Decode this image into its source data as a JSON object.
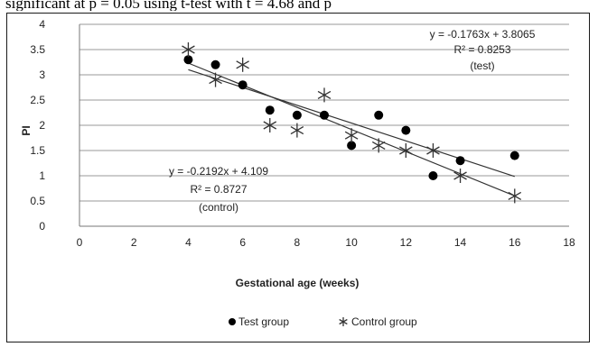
{
  "caption_fragment": "significant at p = 0.05 using t-test with t = 4.68 and p",
  "chart_data": {
    "type": "scatter",
    "title": "",
    "xlabel": "Gestational age (weeks)",
    "ylabel": "PI",
    "xlim": [
      0,
      18
    ],
    "ylim": [
      0,
      4
    ],
    "x_ticks": [
      0,
      2,
      4,
      6,
      8,
      10,
      12,
      14,
      16,
      18
    ],
    "y_ticks": [
      0,
      0.5,
      1,
      1.5,
      2,
      2.5,
      3,
      3.5,
      4
    ],
    "grid": "horizontal",
    "legend": "bottom",
    "series": [
      {
        "name": "Test group",
        "marker": "circle",
        "color": "#000000",
        "points": [
          [
            4,
            3.3
          ],
          [
            5,
            3.2
          ],
          [
            6,
            2.8
          ],
          [
            7,
            2.3
          ],
          [
            8,
            2.2
          ],
          [
            9,
            2.2
          ],
          [
            10,
            1.6
          ],
          [
            11,
            2.2
          ],
          [
            12,
            1.9
          ],
          [
            13,
            1.0
          ],
          [
            14,
            1.3
          ],
          [
            16,
            1.4
          ]
        ],
        "trendline": {
          "slope": -0.1763,
          "intercept": 3.8065,
          "x_range": [
            4,
            16
          ]
        }
      },
      {
        "name": "Control group",
        "marker": "star",
        "color": "#333333",
        "points": [
          [
            4,
            3.5
          ],
          [
            5,
            2.9
          ],
          [
            6,
            3.2
          ],
          [
            7,
            2.0
          ],
          [
            8,
            1.9
          ],
          [
            9,
            2.6
          ],
          [
            10,
            1.8
          ],
          [
            11,
            1.6
          ],
          [
            12,
            1.5
          ],
          [
            13,
            1.5
          ],
          [
            14,
            1.0
          ],
          [
            16,
            0.6
          ]
        ],
        "trendline": {
          "slope": -0.2192,
          "intercept": 4.109,
          "x_range": [
            4,
            16
          ]
        }
      }
    ],
    "annotations": [
      {
        "id": "test",
        "lines": [
          "y = -0.1763x + 3.8065",
          "R² = 0.8253",
          "(test)"
        ]
      },
      {
        "id": "control",
        "lines": [
          "y = -0.2192x + 4.109",
          "R² = 0.8727",
          "(control)"
        ]
      }
    ]
  }
}
